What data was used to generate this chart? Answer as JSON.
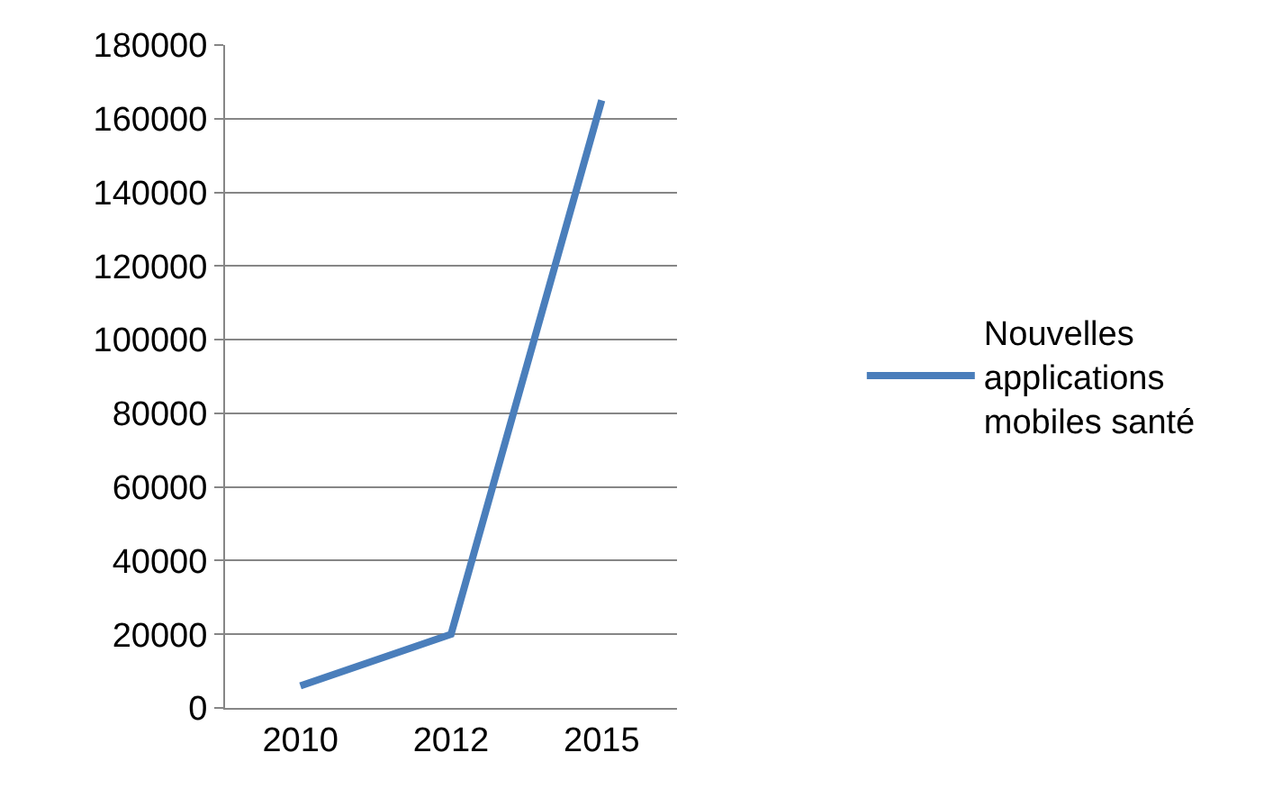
{
  "chart_data": {
    "type": "line",
    "categories": [
      "2010",
      "2012",
      "2015"
    ],
    "series": [
      {
        "name": "Nouvelles applications mobiles santé",
        "color": "#4a7ebb",
        "values": [
          6000,
          20000,
          165000
        ]
      }
    ],
    "ylim": [
      0,
      180000
    ],
    "yticks": [
      0,
      20000,
      40000,
      60000,
      80000,
      100000,
      120000,
      140000,
      160000,
      180000
    ],
    "grid": "y",
    "legend": "right",
    "marker": "none",
    "line_style": "solid"
  }
}
